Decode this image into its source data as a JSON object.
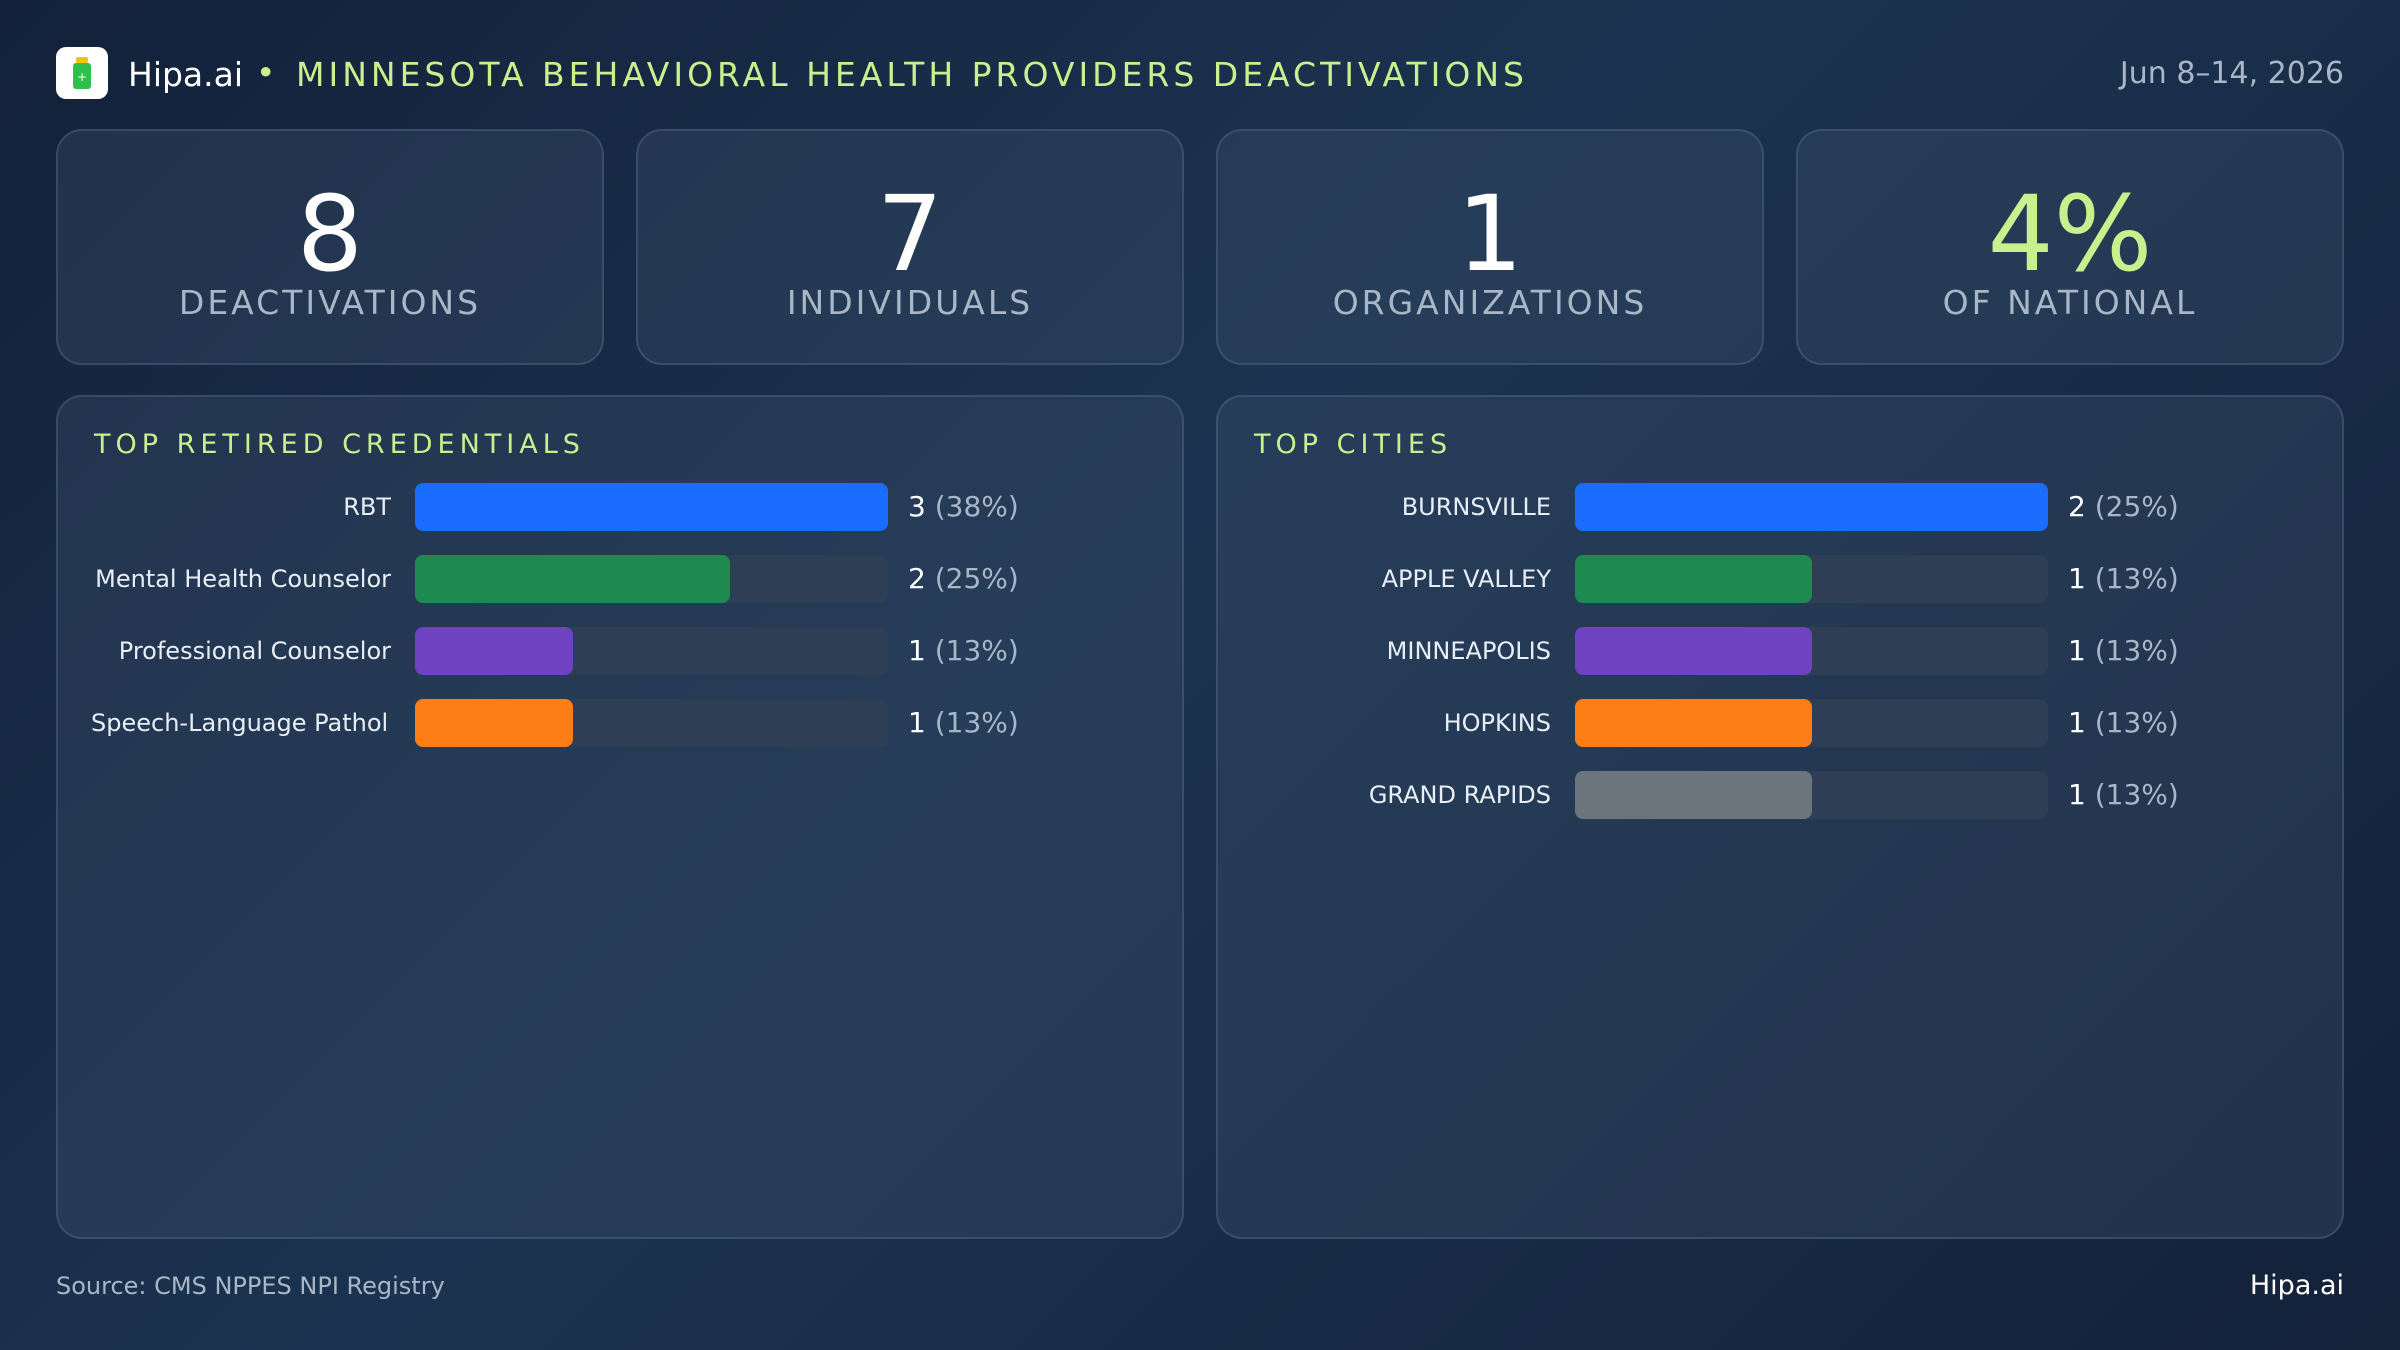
{
  "header": {
    "brand": "Hipa.ai",
    "separator": "•",
    "title": "MINNESOTA BEHAVIORAL HEALTH PROVIDERS DEACTIVATIONS",
    "date": "Jun 8–14, 2026"
  },
  "kpis": [
    {
      "value": 8,
      "label": "DEACTIVATIONS"
    },
    {
      "value": 7,
      "label": "INDIVIDUALS"
    },
    {
      "value": 1,
      "label": "ORGANIZATIONS"
    },
    {
      "value": 4,
      "value_label": "4%",
      "label": "OF NATIONAL",
      "accent": true
    }
  ],
  "chart_data": [
    {
      "type": "bar",
      "orientation": "horizontal",
      "title": "TOP RETIRED CREDENTIALS",
      "categories": [
        "RBT",
        "Mental Health Counselor",
        "Professional Counselor",
        "Speech-Language Pathol…"
      ],
      "values": [
        3,
        2,
        1,
        1
      ],
      "share_labels": [
        "(38%)",
        "(25%)",
        "(13%)",
        "(13%)"
      ],
      "colors": [
        "#1a6dff",
        "#1e8a50",
        "#6f42c1",
        "#fd7e14"
      ],
      "xlim": [
        0,
        3
      ]
    },
    {
      "type": "bar",
      "orientation": "horizontal",
      "title": "TOP CITIES",
      "categories": [
        "BURNSVILLE",
        "APPLE VALLEY",
        "MINNEAPOLIS",
        "HOPKINS",
        "GRAND RAPIDS"
      ],
      "values": [
        2,
        1,
        1,
        1,
        1
      ],
      "share_labels": [
        "(25%)",
        "(13%)",
        "(13%)",
        "(13%)",
        "(13%)"
      ],
      "colors": [
        "#1a6dff",
        "#1e8a50",
        "#6f42c1",
        "#fd7e14",
        "#6c757d"
      ],
      "xlim": [
        0,
        2
      ]
    }
  ],
  "footer": {
    "source": "Source: CMS NPPES NPI Registry",
    "brand": "Hipa.ai"
  }
}
